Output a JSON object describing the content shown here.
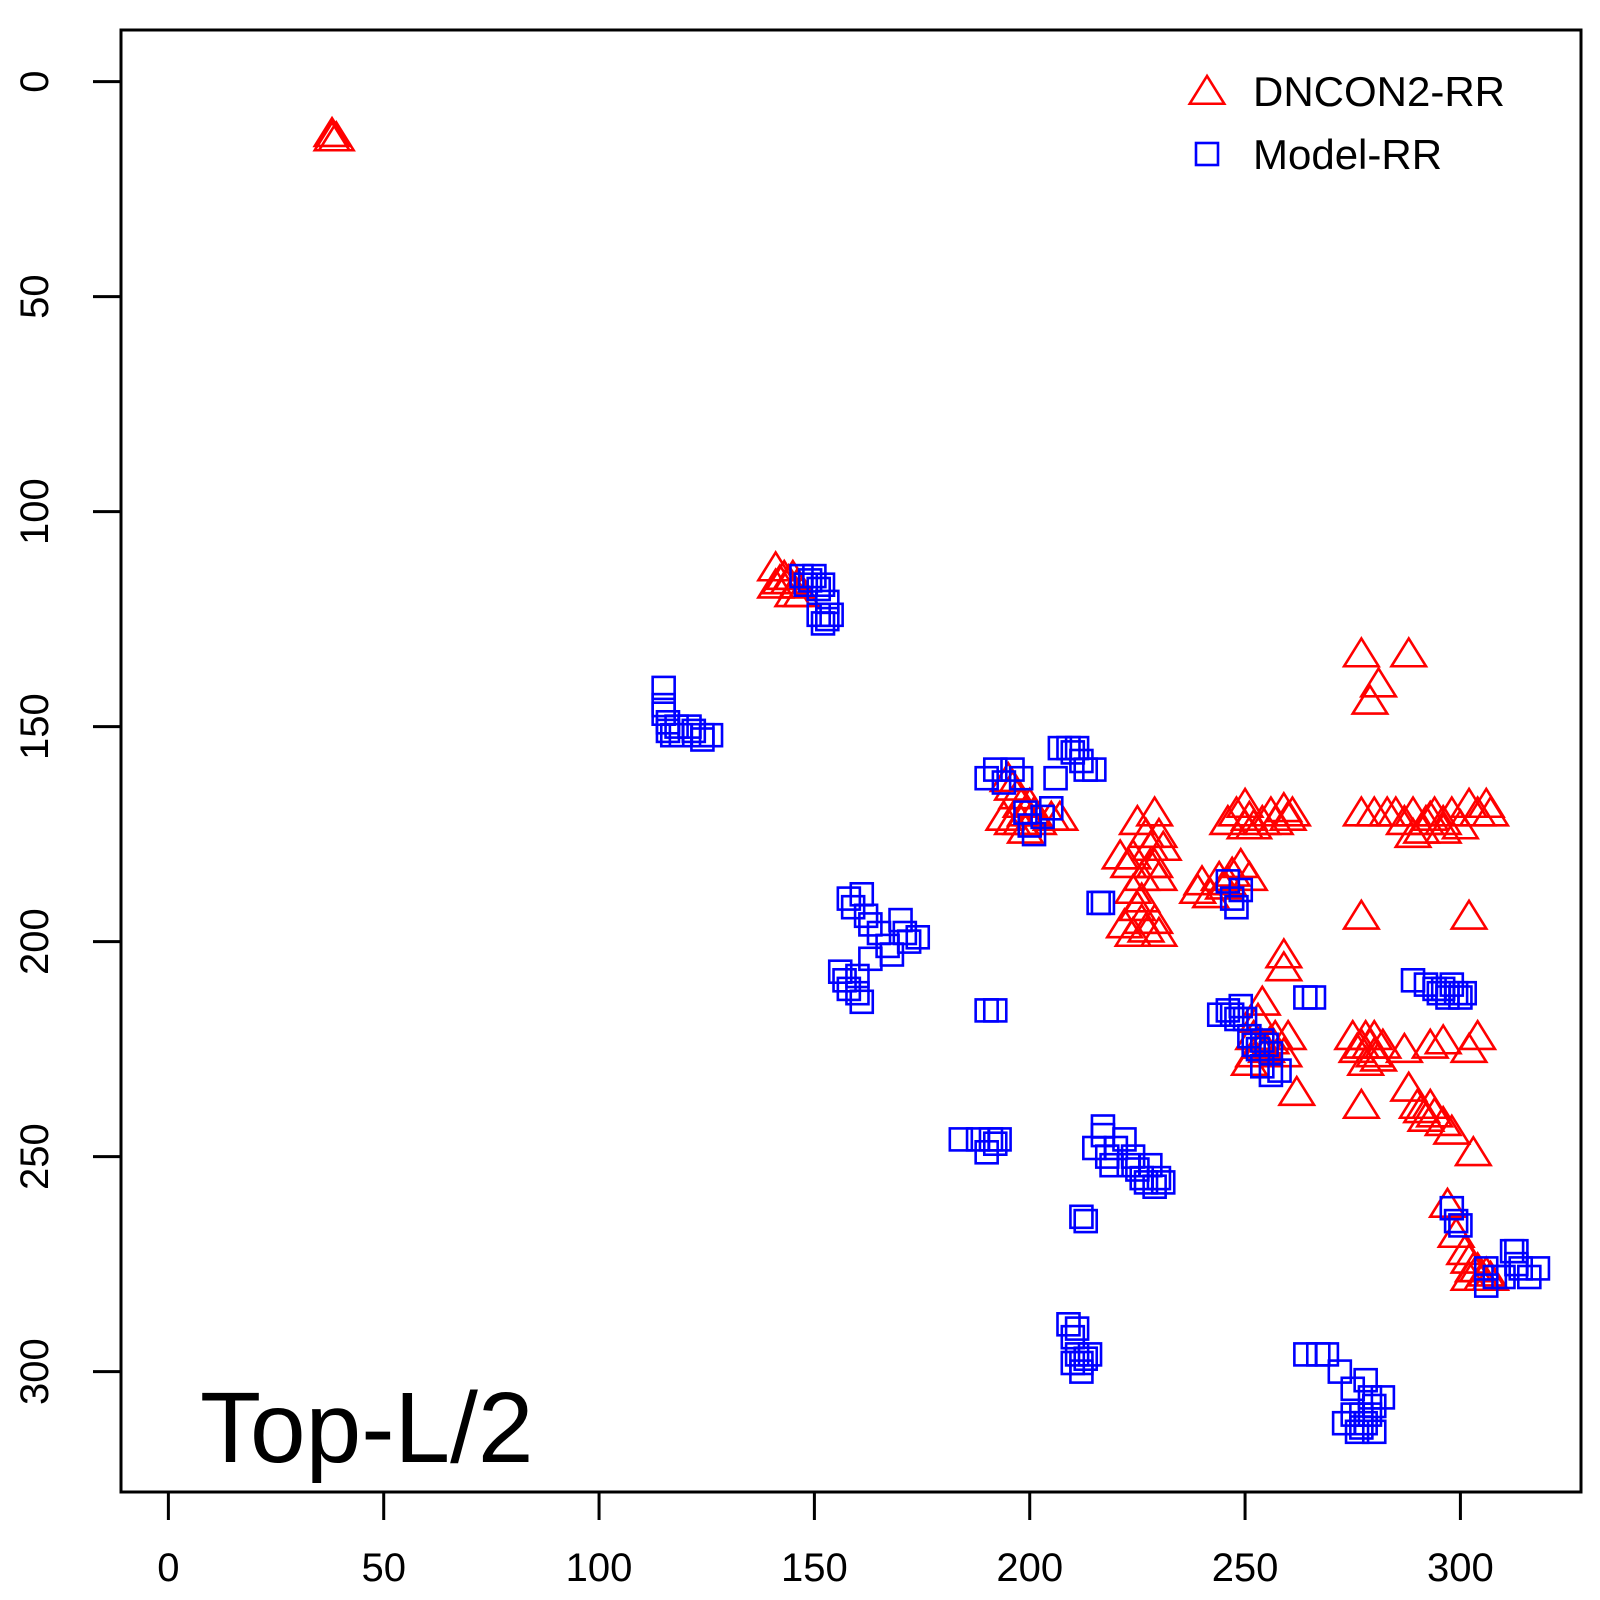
{
  "chart_data": {
    "type": "scatter",
    "title": "",
    "xlabel": "",
    "ylabel": "",
    "xlim": [
      -11,
      328
    ],
    "ylim": [
      -12,
      328
    ],
    "y_inverted": true,
    "x_ticks": [
      0,
      50,
      100,
      150,
      200,
      250,
      300
    ],
    "y_ticks": [
      0,
      50,
      100,
      150,
      200,
      250,
      300
    ],
    "grid": false,
    "legend_position": "top-right",
    "annotation": "Top-L/2",
    "series": [
      {
        "name": "DNCON2-RR",
        "marker": "triangle",
        "color": "#ff0000",
        "points": [
          [
            38,
            12
          ],
          [
            39,
            13
          ],
          [
            38,
            13
          ],
          [
            141,
            113
          ],
          [
            142,
            116
          ],
          [
            143,
            115
          ],
          [
            144,
            116
          ],
          [
            145,
            115
          ],
          [
            146,
            117
          ],
          [
            145,
            119
          ],
          [
            147,
            119
          ],
          [
            141,
            117
          ],
          [
            195,
            162
          ],
          [
            196,
            164
          ],
          [
            197,
            166
          ],
          [
            198,
            168
          ],
          [
            199,
            170
          ],
          [
            200,
            168
          ],
          [
            201,
            170
          ],
          [
            198,
            172
          ],
          [
            196,
            172
          ],
          [
            194,
            171
          ],
          [
            202,
            172
          ],
          [
            205,
            171
          ],
          [
            207,
            171
          ],
          [
            199,
            174
          ],
          [
            223,
            182
          ],
          [
            224,
            180
          ],
          [
            225,
            172
          ],
          [
            227,
            175
          ],
          [
            228,
            178
          ],
          [
            229,
            170
          ],
          [
            230,
            175
          ],
          [
            231,
            178
          ],
          [
            229,
            182
          ],
          [
            230,
            185
          ],
          [
            226,
            185
          ],
          [
            224,
            188
          ],
          [
            225,
            192
          ],
          [
            226,
            195
          ],
          [
            224,
            198
          ],
          [
            227,
            197
          ],
          [
            229,
            195
          ],
          [
            230,
            198
          ],
          [
            222,
            196
          ],
          [
            226,
            190
          ],
          [
            228,
            182
          ],
          [
            221,
            180
          ],
          [
            239,
            188
          ],
          [
            240,
            186
          ],
          [
            242,
            189
          ],
          [
            244,
            185
          ],
          [
            245,
            187
          ],
          [
            246,
            186
          ],
          [
            247,
            184
          ],
          [
            249,
            182
          ],
          [
            251,
            185
          ],
          [
            246,
            172
          ],
          [
            248,
            170
          ],
          [
            250,
            168
          ],
          [
            251,
            171
          ],
          [
            252,
            173
          ],
          [
            254,
            172
          ],
          [
            256,
            170
          ],
          [
            257,
            172
          ],
          [
            259,
            169
          ],
          [
            260,
            171
          ],
          [
            261,
            170
          ],
          [
            250,
            173
          ],
          [
            259,
            203
          ],
          [
            259,
            206
          ],
          [
            252,
            222
          ],
          [
            253,
            218
          ],
          [
            254,
            224
          ],
          [
            255,
            225
          ],
          [
            256,
            223
          ],
          [
            257,
            222
          ],
          [
            259,
            226
          ],
          [
            252,
            226
          ],
          [
            251,
            228
          ],
          [
            260,
            222
          ],
          [
            262,
            235
          ],
          [
            254,
            214
          ],
          [
            277,
            133
          ],
          [
            279,
            144
          ],
          [
            281,
            140
          ],
          [
            288,
            133
          ],
          [
            277,
            170
          ],
          [
            280,
            170
          ],
          [
            283,
            170
          ],
          [
            285,
            170
          ],
          [
            287,
            172
          ],
          [
            289,
            170
          ],
          [
            291,
            174
          ],
          [
            292,
            172
          ],
          [
            293,
            171
          ],
          [
            294,
            170
          ],
          [
            296,
            172
          ],
          [
            298,
            170
          ],
          [
            300,
            173
          ],
          [
            302,
            168
          ],
          [
            304,
            170
          ],
          [
            306,
            168
          ],
          [
            307,
            170
          ],
          [
            296,
            174
          ],
          [
            289,
            175
          ],
          [
            277,
            194
          ],
          [
            302,
            194
          ],
          [
            275,
            222
          ],
          [
            276,
            225
          ],
          [
            277,
            224
          ],
          [
            278,
            222
          ],
          [
            279,
            224
          ],
          [
            280,
            226
          ],
          [
            281,
            227
          ],
          [
            282,
            224
          ],
          [
            278,
            228
          ],
          [
            277,
            238
          ],
          [
            280,
            222
          ],
          [
            287,
            225
          ],
          [
            293,
            224
          ],
          [
            296,
            223
          ],
          [
            302,
            225
          ],
          [
            304,
            222
          ],
          [
            288,
            234
          ],
          [
            290,
            238
          ],
          [
            291,
            239
          ],
          [
            292,
            241
          ],
          [
            293,
            238
          ],
          [
            294,
            240
          ],
          [
            296,
            242
          ],
          [
            298,
            244
          ],
          [
            303,
            249
          ],
          [
            297,
            261
          ],
          [
            299,
            268
          ],
          [
            301,
            272
          ],
          [
            302,
            274
          ],
          [
            303,
            276
          ],
          [
            304,
            276
          ],
          [
            305,
            278
          ],
          [
            306,
            277
          ],
          [
            307,
            278
          ],
          [
            302,
            278
          ]
        ]
      },
      {
        "name": "Model-RR",
        "marker": "square",
        "color": "#0000ff",
        "points": [
          [
            147,
            115
          ],
          [
            148,
            117
          ],
          [
            149,
            116
          ],
          [
            150,
            115
          ],
          [
            151,
            118
          ],
          [
            152,
            117
          ],
          [
            151,
            124
          ],
          [
            152,
            126
          ],
          [
            153,
            125
          ],
          [
            154,
            124
          ],
          [
            153,
            121
          ],
          [
            115,
            141
          ],
          [
            115,
            145
          ],
          [
            115,
            147
          ],
          [
            116,
            149
          ],
          [
            116,
            151
          ],
          [
            117,
            152
          ],
          [
            118,
            150
          ],
          [
            119,
            152
          ],
          [
            121,
            150
          ],
          [
            122,
            151
          ],
          [
            124,
            153
          ],
          [
            126,
            152
          ],
          [
            124,
            152
          ],
          [
            190,
            162
          ],
          [
            192,
            160
          ],
          [
            194,
            163
          ],
          [
            196,
            160
          ],
          [
            198,
            162
          ],
          [
            199,
            170
          ],
          [
            200,
            173
          ],
          [
            201,
            175
          ],
          [
            203,
            171
          ],
          [
            205,
            169
          ],
          [
            206,
            162
          ],
          [
            207,
            155
          ],
          [
            209,
            155
          ],
          [
            210,
            156
          ],
          [
            212,
            158
          ],
          [
            213,
            160
          ],
          [
            215,
            160
          ],
          [
            211,
            155
          ],
          [
            158,
            190
          ],
          [
            159,
            192
          ],
          [
            161,
            189
          ],
          [
            162,
            194
          ],
          [
            163,
            196
          ],
          [
            165,
            198
          ],
          [
            167,
            201
          ],
          [
            168,
            203
          ],
          [
            170,
            195
          ],
          [
            171,
            198
          ],
          [
            172,
            200
          ],
          [
            174,
            199
          ],
          [
            163,
            204
          ],
          [
            156,
            207
          ],
          [
            157,
            209
          ],
          [
            158,
            211
          ],
          [
            160,
            212
          ],
          [
            161,
            214
          ],
          [
            160,
            208
          ],
          [
            190,
            216
          ],
          [
            192,
            216
          ],
          [
            216,
            191
          ],
          [
            217,
            191
          ],
          [
            246,
            186
          ],
          [
            247,
            190
          ],
          [
            248,
            192
          ],
          [
            249,
            188
          ],
          [
            244,
            217
          ],
          [
            246,
            216
          ],
          [
            247,
            217
          ],
          [
            248,
            218
          ],
          [
            249,
            215
          ],
          [
            250,
            218
          ],
          [
            251,
            222
          ],
          [
            252,
            224
          ],
          [
            253,
            225
          ],
          [
            254,
            223
          ],
          [
            255,
            224
          ],
          [
            256,
            226
          ],
          [
            258,
            230
          ],
          [
            256,
            231
          ],
          [
            254,
            229
          ],
          [
            264,
            213
          ],
          [
            266,
            213
          ],
          [
            289,
            209
          ],
          [
            292,
            210
          ],
          [
            294,
            211
          ],
          [
            295,
            212
          ],
          [
            296,
            211
          ],
          [
            297,
            213
          ],
          [
            298,
            210
          ],
          [
            299,
            212
          ],
          [
            300,
            213
          ],
          [
            301,
            212
          ],
          [
            297,
            212
          ],
          [
            184,
            246
          ],
          [
            188,
            246
          ],
          [
            190,
            249
          ],
          [
            191,
            246
          ],
          [
            192,
            247
          ],
          [
            193,
            246
          ],
          [
            215,
            248
          ],
          [
            217,
            245
          ],
          [
            218,
            250
          ],
          [
            219,
            252
          ],
          [
            220,
            248
          ],
          [
            222,
            246
          ],
          [
            224,
            250
          ],
          [
            225,
            253
          ],
          [
            226,
            255
          ],
          [
            227,
            256
          ],
          [
            228,
            252
          ],
          [
            229,
            257
          ],
          [
            230,
            255
          ],
          [
            231,
            256
          ],
          [
            217,
            243
          ],
          [
            223,
            252
          ],
          [
            212,
            264
          ],
          [
            213,
            265
          ],
          [
            298,
            262
          ],
          [
            299,
            265
          ],
          [
            300,
            266
          ],
          [
            306,
            276
          ],
          [
            308,
            278
          ],
          [
            310,
            278
          ],
          [
            312,
            272
          ],
          [
            313,
            275
          ],
          [
            314,
            276
          ],
          [
            316,
            278
          ],
          [
            318,
            276
          ],
          [
            306,
            280
          ],
          [
            313,
            272
          ],
          [
            209,
            289
          ],
          [
            210,
            292
          ],
          [
            211,
            296
          ],
          [
            212,
            298
          ],
          [
            213,
            297
          ],
          [
            214,
            296
          ],
          [
            210,
            298
          ],
          [
            212,
            300
          ],
          [
            211,
            290
          ],
          [
            264,
            296
          ],
          [
            267,
            296
          ],
          [
            269,
            296
          ],
          [
            272,
            300
          ],
          [
            273,
            312
          ],
          [
            275,
            310
          ],
          [
            276,
            314
          ],
          [
            277,
            313
          ],
          [
            278,
            312
          ],
          [
            279,
            310
          ],
          [
            280,
            314
          ],
          [
            278,
            302
          ],
          [
            279,
            306
          ],
          [
            280,
            308
          ],
          [
            282,
            306
          ],
          [
            277,
            310
          ],
          [
            275,
            304
          ]
        ]
      }
    ]
  }
}
